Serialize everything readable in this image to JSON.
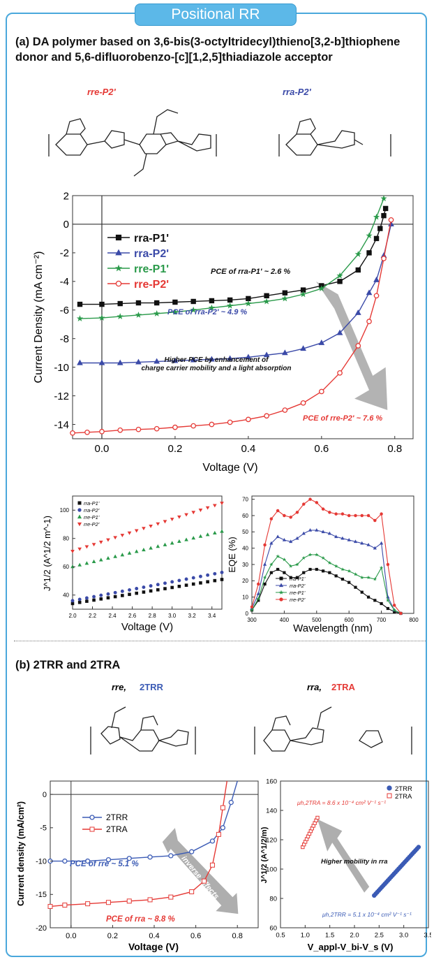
{
  "banner": {
    "title": "Positional RR"
  },
  "section_a": {
    "heading_line1": "(a) DA polymer based on 3,6-bis(3-octyltridecyl)thieno[3,2-b]thiophene",
    "heading_line2": "donor and 5,6-difluorobenzo-[c][1,2,5]thiadiazole acceptor",
    "structure_left_label": "rre-P2'",
    "structure_right_label": "rra-P2'",
    "colors": {
      "rra-P1": "#111111",
      "rra-P2": "#3b4aa8",
      "rre-P1": "#2a9a4a",
      "rre-P2": "#e53935",
      "arrow": "#9a9a9a"
    }
  },
  "section_b": {
    "heading": "(b) 2TRR and 2TRA",
    "structure_left_prefix": "rre, ",
    "structure_left_name": "2TRR",
    "structure_right_prefix": "rra, ",
    "structure_right_name": "2TRA",
    "colors": {
      "2TRR": "#3b5bb5",
      "2TRA": "#e53935"
    }
  },
  "chart_data": [
    {
      "id": "main_jv",
      "type": "line",
      "xlabel": "Voltage (V)",
      "ylabel": "Current Density (mA cm⁻²)",
      "xlim": [
        -0.08,
        0.85
      ],
      "ylim": [
        -15,
        2
      ],
      "xticks": [
        "0.0",
        "0.2",
        "0.4",
        "0.6",
        "0.8"
      ],
      "yticks": [
        "2",
        "0",
        "-2",
        "-4",
        "-6",
        "-8",
        "-10",
        "-12",
        "-14"
      ],
      "legend": [
        "rra-P1'",
        "rra-P2'",
        "rre-P1'",
        "rre-P2'"
      ],
      "legend_position": "top-left",
      "series": [
        {
          "name": "rra-P1'",
          "marker": "square",
          "x": [
            -0.06,
            0.0,
            0.05,
            0.1,
            0.15,
            0.2,
            0.25,
            0.3,
            0.35,
            0.4,
            0.45,
            0.5,
            0.55,
            0.6,
            0.65,
            0.7,
            0.73,
            0.75,
            0.76,
            0.77,
            0.775
          ],
          "y": [
            -5.6,
            -5.6,
            -5.55,
            -5.5,
            -5.5,
            -5.45,
            -5.4,
            -5.35,
            -5.3,
            -5.2,
            -5.0,
            -4.8,
            -4.6,
            -4.3,
            -4.0,
            -3.2,
            -2.0,
            -1.0,
            -0.3,
            0.6,
            1.1
          ]
        },
        {
          "name": "rra-P2'",
          "marker": "triangle",
          "x": [
            -0.06,
            0.0,
            0.05,
            0.1,
            0.15,
            0.2,
            0.25,
            0.3,
            0.35,
            0.4,
            0.45,
            0.5,
            0.55,
            0.6,
            0.65,
            0.7,
            0.73,
            0.75,
            0.77,
            0.79
          ],
          "y": [
            -9.7,
            -9.7,
            -9.7,
            -9.65,
            -9.6,
            -9.55,
            -9.5,
            -9.45,
            -9.4,
            -9.3,
            -9.15,
            -9.0,
            -8.7,
            -8.3,
            -7.6,
            -6.2,
            -4.8,
            -3.9,
            -2.2,
            0.0
          ]
        },
        {
          "name": "rre-P1'",
          "marker": "star",
          "x": [
            -0.06,
            0.0,
            0.05,
            0.1,
            0.15,
            0.2,
            0.25,
            0.3,
            0.35,
            0.4,
            0.45,
            0.5,
            0.55,
            0.6,
            0.65,
            0.7,
            0.73,
            0.75,
            0.77
          ],
          "y": [
            -6.6,
            -6.55,
            -6.45,
            -6.35,
            -6.25,
            -6.15,
            -6.0,
            -5.85,
            -5.7,
            -5.55,
            -5.4,
            -5.2,
            -4.9,
            -4.5,
            -3.6,
            -2.1,
            -0.8,
            0.5,
            1.8
          ]
        },
        {
          "name": "rre-P2'",
          "marker": "circle",
          "x": [
            -0.08,
            -0.04,
            0.0,
            0.05,
            0.1,
            0.15,
            0.2,
            0.25,
            0.3,
            0.35,
            0.4,
            0.45,
            0.5,
            0.55,
            0.6,
            0.65,
            0.7,
            0.73,
            0.75,
            0.77,
            0.79
          ],
          "y": [
            -14.6,
            -14.55,
            -14.5,
            -14.4,
            -14.35,
            -14.3,
            -14.2,
            -14.1,
            -14.0,
            -13.85,
            -13.65,
            -13.4,
            -13.0,
            -12.5,
            -11.7,
            -10.4,
            -8.5,
            -6.8,
            -5.0,
            -2.4,
            0.3
          ]
        }
      ],
      "annotations": [
        "PCE of rra-P1' ~ 2.6 %",
        "PCE of rra-P2' ~ 4.9 %",
        "Higher PCE by enhancement of",
        "charge carrier mobility and a light absorption",
        "PCE of rre-P2' ~ 7.6 %"
      ]
    },
    {
      "id": "sclc",
      "type": "line",
      "xlabel": "Voltage (V)",
      "ylabel": "J^1/2 (A^1/2 m^-1)",
      "xlim": [
        2.0,
        3.5
      ],
      "ylim": [
        30,
        110
      ],
      "xticks": [
        "2.0",
        "2.2",
        "2.4",
        "2.6",
        "2.8",
        "3.0",
        "3.2",
        "3.4"
      ],
      "yticks": [
        "40",
        "60",
        "80",
        "100"
      ],
      "legend": [
        "rra-P1'",
        "rra-P2'",
        "rre-P1'",
        "rre-P2'"
      ],
      "legend_position": "top-left",
      "series": [
        {
          "name": "rra-P1'",
          "start": 34,
          "end": 51
        },
        {
          "name": "rra-P2'",
          "start": 36,
          "end": 56
        },
        {
          "name": "rre-P1'",
          "start": 60,
          "end": 85
        },
        {
          "name": "rre-P2'",
          "start": 71,
          "end": 105
        }
      ]
    },
    {
      "id": "eqe",
      "type": "line",
      "xlabel": "Wavelength (nm)",
      "ylabel": "EQE (%)",
      "xlim": [
        300,
        800
      ],
      "ylim": [
        0,
        72
      ],
      "xticks": [
        "300",
        "400",
        "500",
        "600",
        "700",
        "800"
      ],
      "yticks": [
        "0",
        "10",
        "20",
        "30",
        "40",
        "50",
        "60",
        "70"
      ],
      "legend": [
        "rra-P1'",
        "rra-P2'",
        "rre-P1'",
        "rre-P2'"
      ],
      "legend_position": "bottom-center",
      "x": [
        300,
        320,
        340,
        360,
        380,
        400,
        420,
        440,
        460,
        480,
        500,
        520,
        540,
        560,
        580,
        600,
        620,
        640,
        660,
        680,
        700,
        720,
        740,
        760
      ],
      "series": [
        {
          "name": "rra-P1'",
          "values": [
            2,
            8,
            18,
            25,
            27,
            25,
            22,
            22,
            25,
            27,
            27,
            26,
            25,
            23,
            21,
            19,
            16,
            13,
            10,
            8,
            6,
            3,
            1,
            0
          ]
        },
        {
          "name": "rra-P2'",
          "values": [
            3,
            12,
            30,
            43,
            47,
            45,
            44,
            46,
            49,
            51,
            51,
            50,
            49,
            47,
            46,
            45,
            44,
            43,
            42,
            40,
            43,
            10,
            2,
            0
          ]
        },
        {
          "name": "rre-P1'",
          "values": [
            2,
            9,
            22,
            30,
            35,
            33,
            29,
            30,
            34,
            36,
            36,
            34,
            31,
            29,
            27,
            26,
            24,
            22,
            22,
            21,
            28,
            8,
            2,
            0
          ]
        },
        {
          "name": "rre-P2'",
          "values": [
            4,
            18,
            42,
            58,
            63,
            60,
            59,
            62,
            67,
            70,
            68,
            64,
            62,
            61,
            61,
            60,
            60,
            60,
            60,
            57,
            61,
            30,
            5,
            0
          ]
        }
      ]
    },
    {
      "id": "jv_2tr",
      "type": "line",
      "xlabel": "Voltage (V)",
      "ylabel": "Current density (mA/cm²)",
      "xlim": [
        -0.1,
        0.9
      ],
      "ylim": [
        -20,
        2
      ],
      "xticks": [
        "0.0",
        "0.2",
        "0.4",
        "0.6",
        "0.8"
      ],
      "yticks": [
        "0",
        "-5",
        "-10",
        "-15",
        "-20"
      ],
      "legend": [
        "2TRR",
        "2TRA"
      ],
      "legend_position": "top-left",
      "series": [
        {
          "name": "2TRR",
          "marker": "circle",
          "x": [
            -0.1,
            -0.03,
            0.08,
            0.18,
            0.28,
            0.38,
            0.48,
            0.58,
            0.68,
            0.73,
            0.77,
            0.8
          ],
          "y": [
            -10,
            -10,
            -10,
            -9.8,
            -9.6,
            -9.4,
            -9.2,
            -8.6,
            -7.0,
            -5.0,
            -1.2,
            2
          ]
        },
        {
          "name": "2TRA",
          "marker": "square",
          "x": [
            -0.1,
            -0.03,
            0.08,
            0.18,
            0.28,
            0.38,
            0.48,
            0.58,
            0.64,
            0.68,
            0.71,
            0.73,
            0.75
          ],
          "y": [
            -16.8,
            -16.6,
            -16.4,
            -16.2,
            -16.0,
            -15.8,
            -15.4,
            -14.6,
            -13.0,
            -10.6,
            -6.0,
            -2.0,
            2
          ]
        }
      ],
      "annotations": [
        "PCE of rre ~ 5.1 %",
        "PCE of rra ~ 8.8 %",
        "inverse effects"
      ]
    },
    {
      "id": "mobility_2tr",
      "type": "scatter",
      "xlabel": "V_appl-V_bi-V_s (V)",
      "ylabel": "J^1/2 (A^1/2/m)",
      "xlim": [
        0.5,
        3.5
      ],
      "ylim": [
        60,
        160
      ],
      "xticks": [
        "0.5",
        "1.0",
        "1.5",
        "2.0",
        "2.5",
        "3.0",
        "3.5"
      ],
      "yticks": [
        "60",
        "80",
        "100",
        "120",
        "140",
        "160"
      ],
      "legend": [
        "2TRR",
        "2TRA"
      ],
      "legend_position": "top-right",
      "series": [
        {
          "name": "2TRR",
          "x_start": 2.4,
          "x_end": 3.3,
          "y_start": 82,
          "y_end": 115
        },
        {
          "name": "2TRA",
          "x_start": 0.95,
          "x_end": 1.25,
          "y_start": 115,
          "y_end": 135
        }
      ],
      "annotations": [
        "μh,2TRA = 8.6 x 10⁻⁴ cm² V⁻¹ s⁻¹",
        "Higher mobility in rra",
        "μh,2TRR = 5.1 x 10⁻⁴ cm² V⁻¹ s⁻¹"
      ]
    }
  ]
}
